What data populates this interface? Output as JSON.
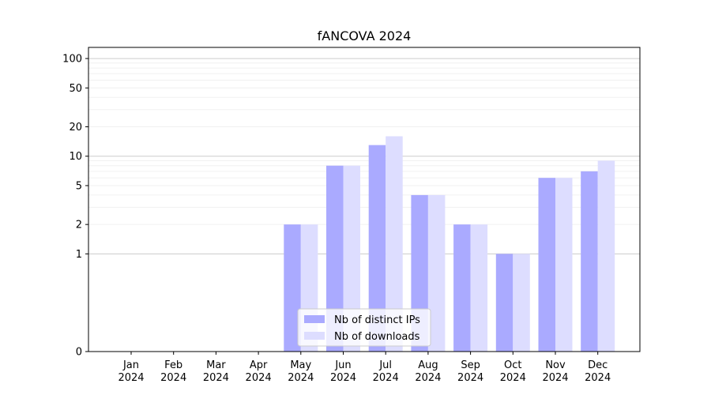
{
  "chart_data": {
    "type": "bar",
    "title": "fANCOVA 2024",
    "xlabel": "",
    "ylabel": "",
    "scale": "symlog",
    "grid": true,
    "legend_position": "lower-center",
    "categories": [
      [
        "Jan",
        "2024"
      ],
      [
        "Feb",
        "2024"
      ],
      [
        "Mar",
        "2024"
      ],
      [
        "Apr",
        "2024"
      ],
      [
        "May",
        "2024"
      ],
      [
        "Jun",
        "2024"
      ],
      [
        "Jul",
        "2024"
      ],
      [
        "Aug",
        "2024"
      ],
      [
        "Sep",
        "2024"
      ],
      [
        "Oct",
        "2024"
      ],
      [
        "Nov",
        "2024"
      ],
      [
        "Dec",
        "2024"
      ]
    ],
    "yticks": [
      {
        "value": 0,
        "label": "0"
      },
      {
        "value": 1,
        "label": "1"
      },
      {
        "value": 2,
        "label": "2"
      },
      {
        "value": 5,
        "label": "5"
      },
      {
        "value": 10,
        "label": "10"
      },
      {
        "value": 20,
        "label": "20"
      },
      {
        "value": 50,
        "label": "50"
      },
      {
        "value": 100,
        "label": "100"
      }
    ],
    "ylim": [
      0,
      130
    ],
    "series": [
      {
        "name": "Nb of distinct IPs",
        "color": "#aaaaff",
        "values": [
          0,
          0,
          0,
          0,
          2,
          8,
          13,
          4,
          2,
          1,
          6,
          7
        ]
      },
      {
        "name": "Nb of downloads",
        "color": "#ddddff",
        "values": [
          0,
          0,
          0,
          0,
          2,
          8,
          16,
          4,
          2,
          1,
          6,
          9
        ]
      }
    ]
  }
}
